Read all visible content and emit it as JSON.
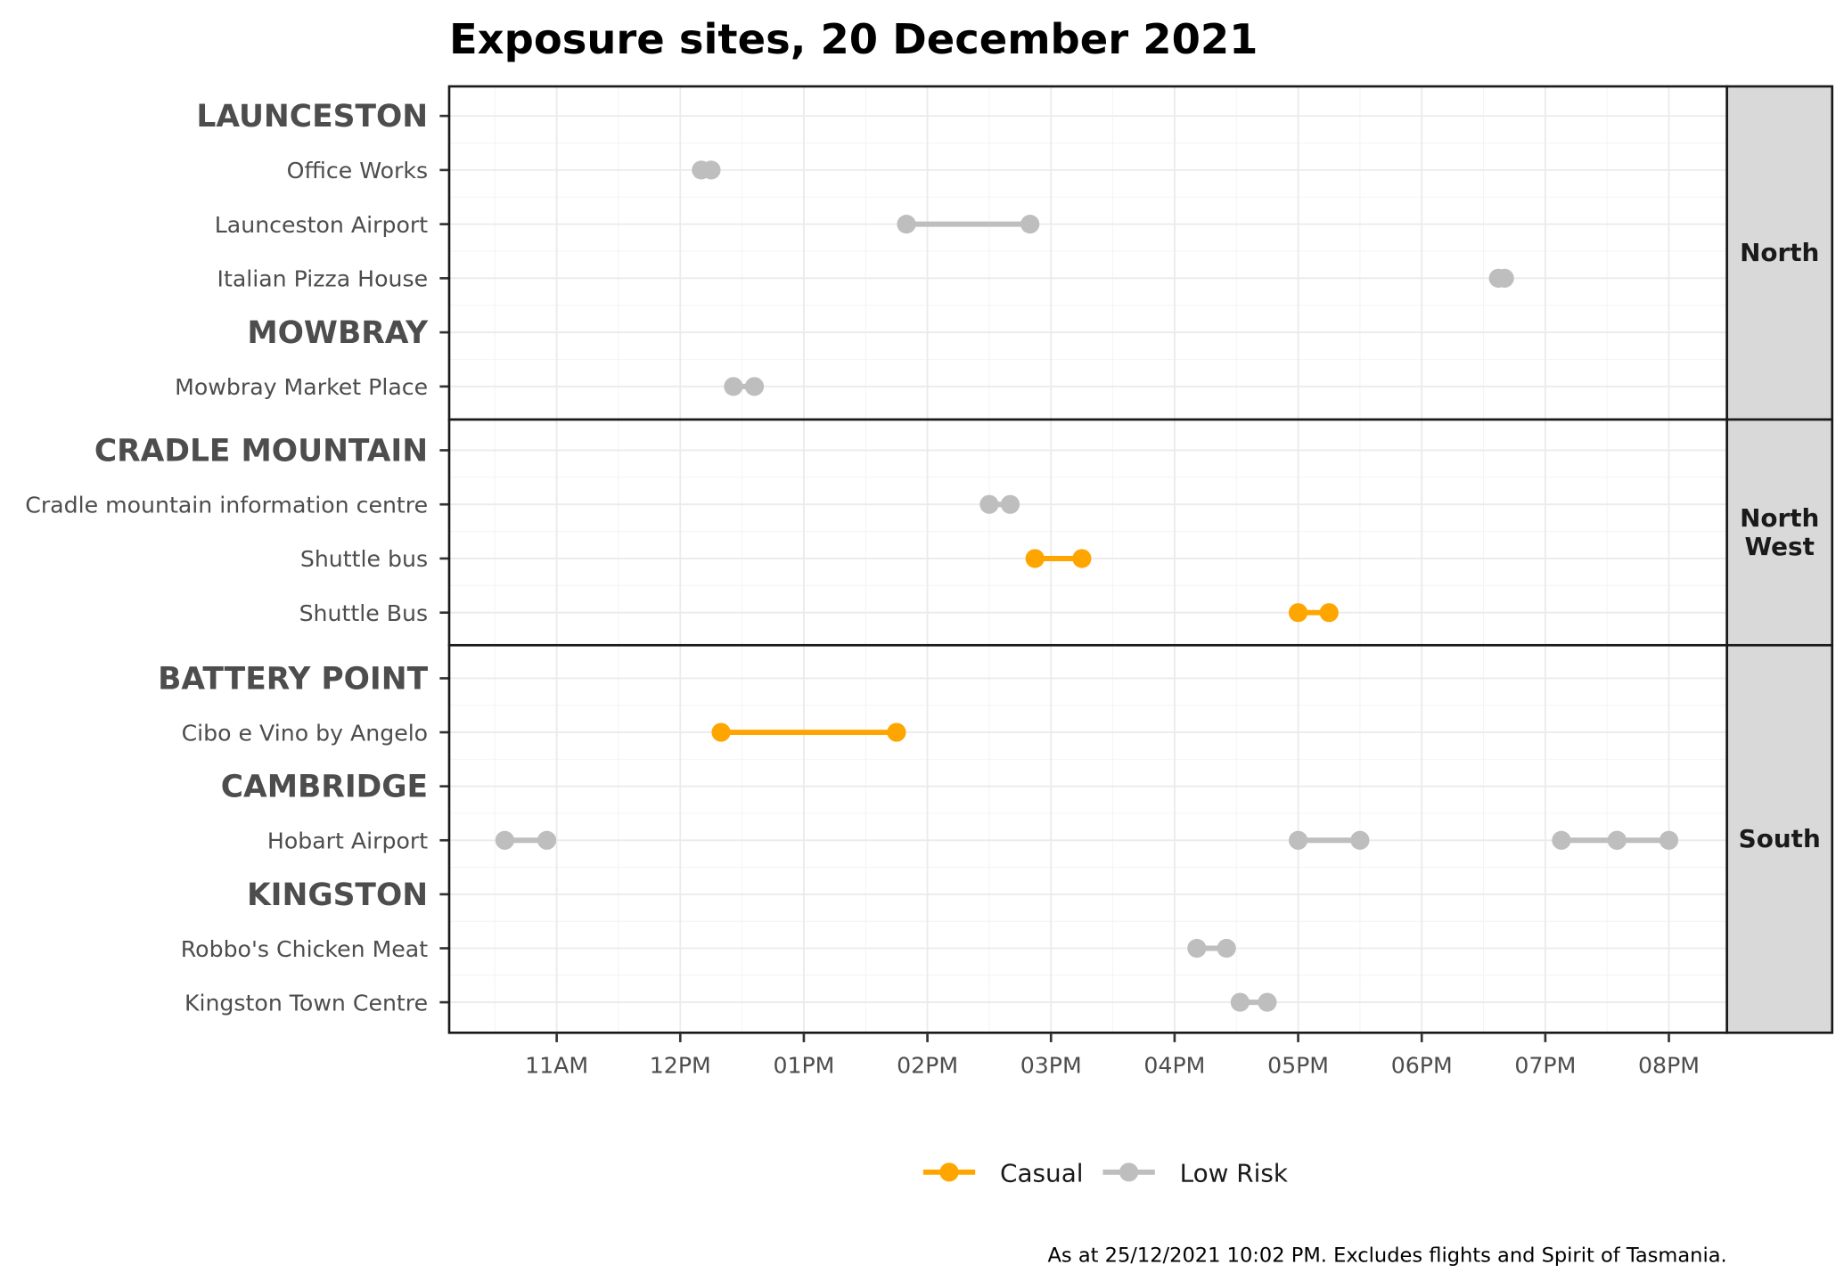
{
  "chart_data": {
    "type": "dumbbell",
    "title": "Exposure sites, 20 December 2021",
    "caption": "As at 25/12/2021 10:02 PM. Excludes flights and Spirit of Tasmania.",
    "x_ticks": [
      "11AM",
      "12PM",
      "01PM",
      "02PM",
      "03PM",
      "04PM",
      "05PM",
      "06PM",
      "07PM",
      "08PM"
    ],
    "x_tick_hours": [
      11,
      12,
      13,
      14,
      15,
      16,
      17,
      18,
      19,
      20
    ],
    "xlim_hours": [
      10.13,
      20.47
    ],
    "legend": [
      {
        "label": "Casual",
        "color": "#FFA500"
      },
      {
        "label": "Low Risk",
        "color": "#BEBEBE"
      }
    ],
    "colors": {
      "Casual": "#FFA500",
      "Low Risk": "#BEBEBE"
    },
    "panels": [
      {
        "strip": [
          "North"
        ],
        "rows": [
          {
            "label": "LAUNCESTON",
            "header": true
          },
          {
            "label": "Office Works"
          },
          {
            "label": "Launceston Airport"
          },
          {
            "label": "Italian Pizza House"
          },
          {
            "label": "MOWBRAY",
            "header": true
          },
          {
            "label": "Mowbray Market Place"
          }
        ]
      },
      {
        "strip": [
          "North",
          "West"
        ],
        "rows": [
          {
            "label": "CRADLE MOUNTAIN",
            "header": true
          },
          {
            "label": "Cradle mountain information centre"
          },
          {
            "label": "Shuttle bus"
          },
          {
            "label": "Shuttle Bus"
          }
        ]
      },
      {
        "strip": [
          "South"
        ],
        "rows": [
          {
            "label": "BATTERY POINT",
            "header": true
          },
          {
            "label": "Cibo e Vino by Angelo"
          },
          {
            "label": "CAMBRIDGE",
            "header": true
          },
          {
            "label": "Hobart Airport"
          },
          {
            "label": "KINGSTON",
            "header": true
          },
          {
            "label": "Robbo's Chicken Meat"
          },
          {
            "label": "Kingston Town Centre"
          }
        ]
      }
    ],
    "segments": [
      {
        "panel": 0,
        "row": 1,
        "start": 12.17,
        "end": 12.25,
        "risk": "Low Risk"
      },
      {
        "panel": 0,
        "row": 2,
        "start": 13.83,
        "end": 14.83,
        "risk": "Low Risk"
      },
      {
        "panel": 0,
        "row": 3,
        "start": 18.62,
        "end": 18.67,
        "risk": "Low Risk"
      },
      {
        "panel": 0,
        "row": 5,
        "start": 12.43,
        "end": 12.6,
        "risk": "Low Risk"
      },
      {
        "panel": 1,
        "row": 1,
        "start": 14.5,
        "end": 14.67,
        "risk": "Low Risk"
      },
      {
        "panel": 1,
        "row": 2,
        "start": 14.87,
        "end": 15.25,
        "risk": "Casual"
      },
      {
        "panel": 1,
        "row": 3,
        "start": 17.0,
        "end": 17.25,
        "risk": "Casual"
      },
      {
        "panel": 2,
        "row": 1,
        "start": 12.33,
        "end": 13.75,
        "risk": "Casual"
      },
      {
        "panel": 2,
        "row": 3,
        "start": 10.58,
        "end": 10.92,
        "risk": "Low Risk"
      },
      {
        "panel": 2,
        "row": 3,
        "start": 17.0,
        "end": 17.5,
        "risk": "Low Risk"
      },
      {
        "panel": 2,
        "row": 3,
        "start": 19.13,
        "end": 19.58,
        "risk": "Low Risk"
      },
      {
        "panel": 2,
        "row": 3,
        "start": 19.58,
        "end": 20.0,
        "risk": "Low Risk"
      },
      {
        "panel": 2,
        "row": 5,
        "start": 16.18,
        "end": 16.42,
        "risk": "Low Risk"
      },
      {
        "panel": 2,
        "row": 6,
        "start": 16.53,
        "end": 16.75,
        "risk": "Low Risk"
      }
    ]
  }
}
